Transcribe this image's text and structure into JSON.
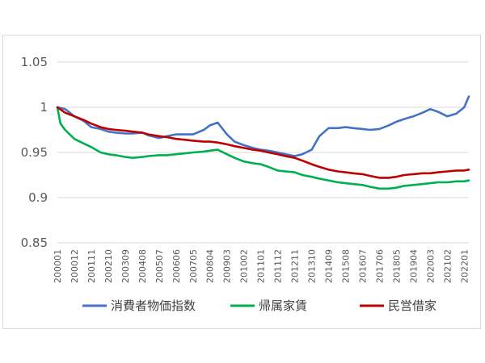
{
  "chart_data": {
    "type": "line",
    "title": "",
    "xlabel": "",
    "ylabel": "",
    "ylim": [
      0.85,
      1.05
    ],
    "yticks": [
      0.85,
      0.9,
      0.95,
      1,
      1.05
    ],
    "ytick_labels": [
      "0.85",
      "0.9",
      "0.95",
      "1",
      "1.05"
    ],
    "x_tick_labels": [
      "200001",
      "200012",
      "200111",
      "200210",
      "200309",
      "200408",
      "200507",
      "200606",
      "200705",
      "200804",
      "200903",
      "201002",
      "201101",
      "201112",
      "201211",
      "201310",
      "201409",
      "201508",
      "201607",
      "201706",
      "201805",
      "201904",
      "202003",
      "202102",
      "202201"
    ],
    "x_range": [
      "200001",
      "202204"
    ],
    "grid": "horizontal",
    "legend_position": "bottom",
    "series": [
      {
        "name": "消費者物価指数",
        "color": "#4472c4",
        "points": [
          [
            "200001",
            1.0
          ],
          [
            "200006",
            0.998
          ],
          [
            "200012",
            0.99
          ],
          [
            "200106",
            0.985
          ],
          [
            "200111",
            0.978
          ],
          [
            "200205",
            0.976
          ],
          [
            "200210",
            0.973
          ],
          [
            "200303",
            0.972
          ],
          [
            "200309",
            0.971
          ],
          [
            "200402",
            0.971
          ],
          [
            "200408",
            0.972
          ],
          [
            "200412",
            0.969
          ],
          [
            "200507",
            0.966
          ],
          [
            "200512",
            0.968
          ],
          [
            "200606",
            0.97
          ],
          [
            "200612",
            0.97
          ],
          [
            "200705",
            0.97
          ],
          [
            "200712",
            0.975
          ],
          [
            "200804",
            0.98
          ],
          [
            "200809",
            0.983
          ],
          [
            "200903",
            0.97
          ],
          [
            "200908",
            0.962
          ],
          [
            "201002",
            0.958
          ],
          [
            "201008",
            0.955
          ],
          [
            "201101",
            0.953
          ],
          [
            "201106",
            0.952
          ],
          [
            "201112",
            0.95
          ],
          [
            "201205",
            0.948
          ],
          [
            "201211",
            0.946
          ],
          [
            "201304",
            0.948
          ],
          [
            "201310",
            0.953
          ],
          [
            "201403",
            0.968
          ],
          [
            "201409",
            0.977
          ],
          [
            "201503",
            0.977
          ],
          [
            "201508",
            0.978
          ],
          [
            "201601",
            0.977
          ],
          [
            "201607",
            0.976
          ],
          [
            "201612",
            0.975
          ],
          [
            "201706",
            0.976
          ],
          [
            "201712",
            0.98
          ],
          [
            "201805",
            0.984
          ],
          [
            "201810",
            0.987
          ],
          [
            "201904",
            0.99
          ],
          [
            "201910",
            0.994
          ],
          [
            "202003",
            0.998
          ],
          [
            "202008",
            0.995
          ],
          [
            "202102",
            0.99
          ],
          [
            "202108",
            0.993
          ],
          [
            "202201",
            1.0
          ],
          [
            "202204",
            1.012
          ]
        ]
      },
      {
        "name": "帰属家賃",
        "color": "#00b050",
        "points": [
          [
            "200001",
            1.0
          ],
          [
            "200003",
            0.982
          ],
          [
            "200006",
            0.975
          ],
          [
            "200012",
            0.965
          ],
          [
            "200106",
            0.96
          ],
          [
            "200111",
            0.956
          ],
          [
            "200205",
            0.95
          ],
          [
            "200210",
            0.948
          ],
          [
            "200303",
            0.947
          ],
          [
            "200309",
            0.945
          ],
          [
            "200402",
            0.944
          ],
          [
            "200408",
            0.945
          ],
          [
            "200412",
            0.946
          ],
          [
            "200507",
            0.947
          ],
          [
            "200512",
            0.947
          ],
          [
            "200606",
            0.948
          ],
          [
            "200612",
            0.949
          ],
          [
            "200705",
            0.95
          ],
          [
            "200712",
            0.951
          ],
          [
            "200804",
            0.952
          ],
          [
            "200809",
            0.953
          ],
          [
            "200903",
            0.948
          ],
          [
            "200908",
            0.944
          ],
          [
            "201002",
            0.94
          ],
          [
            "201008",
            0.938
          ],
          [
            "201101",
            0.937
          ],
          [
            "201106",
            0.934
          ],
          [
            "201112",
            0.93
          ],
          [
            "201205",
            0.929
          ],
          [
            "201211",
            0.928
          ],
          [
            "201304",
            0.925
          ],
          [
            "201310",
            0.923
          ],
          [
            "201403",
            0.921
          ],
          [
            "201409",
            0.919
          ],
          [
            "201503",
            0.917
          ],
          [
            "201508",
            0.916
          ],
          [
            "201601",
            0.915
          ],
          [
            "201607",
            0.914
          ],
          [
            "201612",
            0.912
          ],
          [
            "201706",
            0.91
          ],
          [
            "201712",
            0.91
          ],
          [
            "201805",
            0.911
          ],
          [
            "201810",
            0.913
          ],
          [
            "201904",
            0.914
          ],
          [
            "201910",
            0.915
          ],
          [
            "202003",
            0.916
          ],
          [
            "202008",
            0.917
          ],
          [
            "202102",
            0.917
          ],
          [
            "202108",
            0.918
          ],
          [
            "202201",
            0.918
          ],
          [
            "202204",
            0.919
          ]
        ]
      },
      {
        "name": "民営借家",
        "color": "#c00000",
        "points": [
          [
            "200001",
            1.0
          ],
          [
            "200006",
            0.994
          ],
          [
            "200012",
            0.99
          ],
          [
            "200106",
            0.986
          ],
          [
            "200111",
            0.982
          ],
          [
            "200205",
            0.978
          ],
          [
            "200210",
            0.976
          ],
          [
            "200303",
            0.975
          ],
          [
            "200309",
            0.974
          ],
          [
            "200402",
            0.973
          ],
          [
            "200408",
            0.972
          ],
          [
            "200412",
            0.97
          ],
          [
            "200507",
            0.968
          ],
          [
            "200512",
            0.967
          ],
          [
            "200606",
            0.965
          ],
          [
            "200612",
            0.964
          ],
          [
            "200705",
            0.963
          ],
          [
            "200712",
            0.962
          ],
          [
            "200804",
            0.962
          ],
          [
            "200809",
            0.961
          ],
          [
            "200903",
            0.959
          ],
          [
            "200908",
            0.957
          ],
          [
            "201002",
            0.955
          ],
          [
            "201008",
            0.953
          ],
          [
            "201101",
            0.952
          ],
          [
            "201106",
            0.95
          ],
          [
            "201112",
            0.948
          ],
          [
            "201205",
            0.946
          ],
          [
            "201211",
            0.944
          ],
          [
            "201304",
            0.941
          ],
          [
            "201310",
            0.937
          ],
          [
            "201403",
            0.934
          ],
          [
            "201409",
            0.931
          ],
          [
            "201503",
            0.929
          ],
          [
            "201508",
            0.928
          ],
          [
            "201601",
            0.927
          ],
          [
            "201607",
            0.926
          ],
          [
            "201612",
            0.924
          ],
          [
            "201706",
            0.922
          ],
          [
            "201712",
            0.922
          ],
          [
            "201805",
            0.923
          ],
          [
            "201810",
            0.925
          ],
          [
            "201904",
            0.926
          ],
          [
            "201910",
            0.927
          ],
          [
            "202003",
            0.927
          ],
          [
            "202008",
            0.928
          ],
          [
            "202102",
            0.929
          ],
          [
            "202108",
            0.93
          ],
          [
            "202201",
            0.93
          ],
          [
            "202204",
            0.931
          ]
        ]
      }
    ]
  }
}
